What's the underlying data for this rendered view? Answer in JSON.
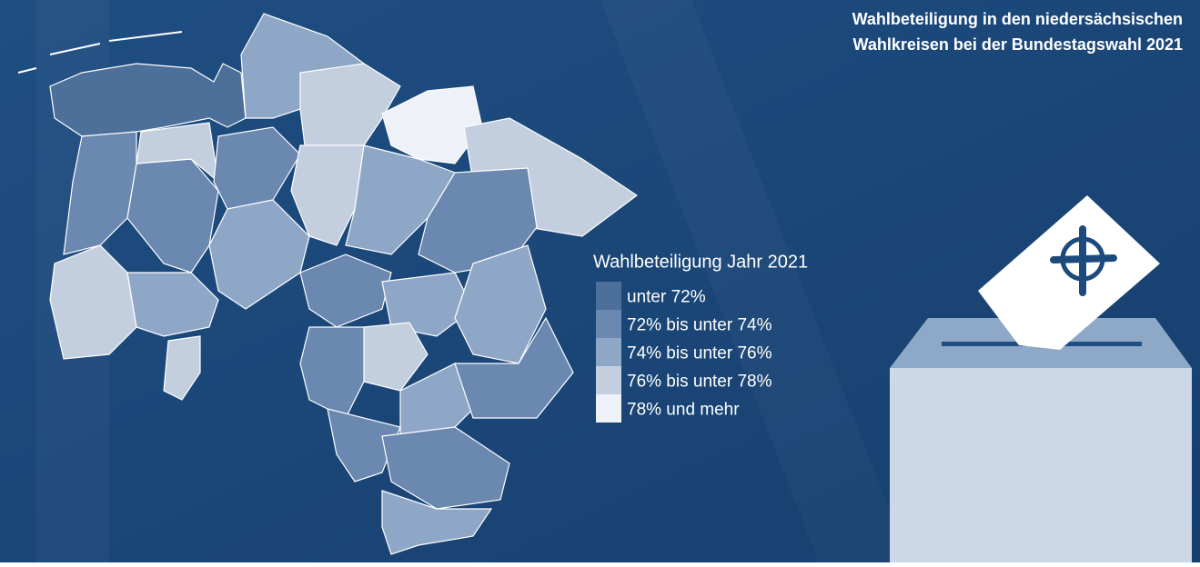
{
  "title": [
    "Wahlbeteiligung in den niedersächsischen",
    "Wahlkreisen bei der Bundestagswahl 2021"
  ],
  "legend": {
    "title": "Wahlbeteiligung Jahr 2021",
    "items": [
      {
        "label": "unter 72%",
        "color": "#4d709b"
      },
      {
        "label": "72% bis unter 74%",
        "color": "#6a88b0"
      },
      {
        "label": "74% bis unter 76%",
        "color": "#8fa7c7"
      },
      {
        "label": "76% bis unter 78%",
        "color": "#c3cfdf"
      },
      {
        "label": "78% und mehr",
        "color": "#eef2f8"
      }
    ]
  }
}
